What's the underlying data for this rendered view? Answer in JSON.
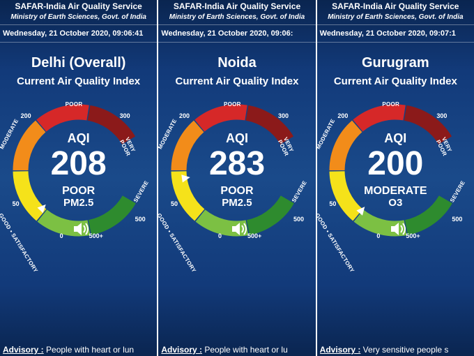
{
  "header": {
    "service": "SAFAR-India Air Quality Service",
    "ministry": "Ministry of Earth Sciences, Govt. of India"
  },
  "gauge": {
    "segments": [
      {
        "name": "GOOD",
        "color": "#2e8b2e",
        "label": "GOOD • SATISFACTORY"
      },
      {
        "name": "SATISFACTORY",
        "color": "#7cc043"
      },
      {
        "name": "MODERATE",
        "color": "#f5e21a",
        "label": "MODERATE"
      },
      {
        "name": "POOR",
        "color": "#f28c1a",
        "label": "POOR"
      },
      {
        "name": "VERY_POOR",
        "color": "#d62828",
        "label": "VERY POOR"
      },
      {
        "name": "SEVERE",
        "color": "#8b1a1a",
        "label": "SEVERE"
      }
    ],
    "ticks": [
      "0",
      "50",
      "200",
      "300",
      "500",
      "500+"
    ],
    "max": 500,
    "segment_span_deg": 50,
    "start_angle_deg": 120,
    "radius_outer": 95,
    "radius_inner": 72,
    "stroke_width": 22,
    "pointer_color": "#ffffff"
  },
  "panels": [
    {
      "timestamp": "Wednesday, 21 October 2020, 09:06:41",
      "location": "Delhi (Overall)",
      "subtitle": "Current Air Quality Index",
      "aqi_label": "AQI",
      "aqi_value": "208",
      "aqi_status": "POOR",
      "aqi_pollutant": "PM2.5",
      "pointer_value": 208,
      "advisory_label": "Advisory :",
      "advisory_text": " People with heart or lun"
    },
    {
      "timestamp": "Wednesday, 21 October 2020, 09:06:",
      "location": "Noida",
      "subtitle": "Current Air Quality Index",
      "aqi_label": "AQI",
      "aqi_value": "283",
      "aqi_status": "POOR",
      "aqi_pollutant": "PM2.5",
      "pointer_value": 283,
      "advisory_label": "Advisory :",
      "advisory_text": " People with heart or lu"
    },
    {
      "timestamp": "Wednesday, 21 October 2020, 09:07:1",
      "location": "Gurugram",
      "subtitle": "Current Air Quality Index",
      "aqi_label": "AQI",
      "aqi_value": "200",
      "aqi_status": "MODERATE",
      "aqi_pollutant": "O3",
      "pointer_value": 200,
      "advisory_label": "Advisory :",
      "advisory_text": " Very sensitive people s"
    }
  ]
}
